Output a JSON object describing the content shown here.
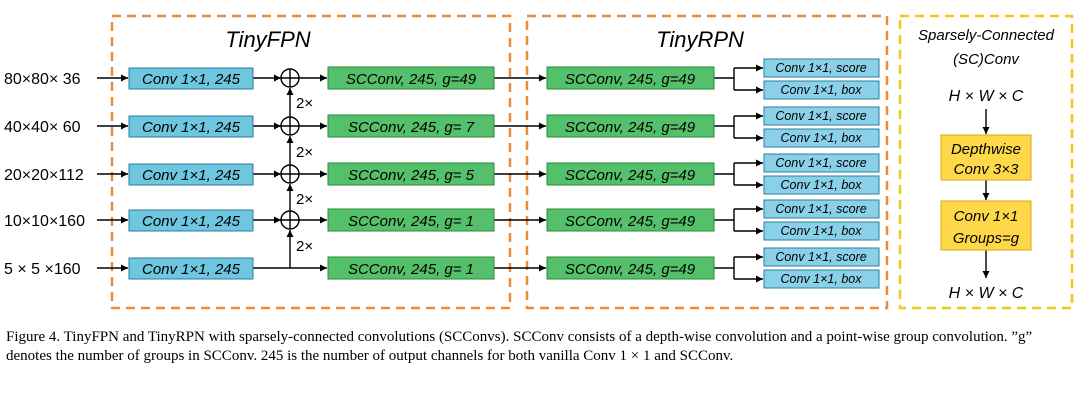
{
  "colors": {
    "conv_fill": "#6ec6df",
    "scconv_fill": "#55c06a",
    "head_fill": "#8ad0e8",
    "sc_fill": "#ffd84a",
    "frame_orange": "#f08a33",
    "frame_yellow": "#f5c518",
    "line": "#000000"
  },
  "sections": {
    "fpn_title": "TinyFPN",
    "rpn_title": "TinyRPN",
    "sc_title_line1": "Sparsely-Connected",
    "sc_title_line2": "(SC)Conv"
  },
  "inputs": [
    "80×80× 36",
    "40×40× 60",
    "20×20×112",
    "10×10×160",
    "5 × 5 ×160"
  ],
  "conv_label": "Conv 1×1, 245",
  "upsample_label": "2×",
  "fpn_scconv": [
    "SCConv, 245, g=49",
    "SCConv, 245, g= 7",
    "SCConv, 245, g= 5",
    "SCConv, 245, g= 1",
    "SCConv, 245, g= 1"
  ],
  "rpn_scconv": "SCConv, 245, g=49",
  "head_score": "Conv 1×1, score",
  "head_box": "Conv 1×1, box",
  "sc_block": {
    "input": "H × W × C",
    "depthwise_line1": "Depthwise",
    "depthwise_line2": "Conv 3×3",
    "group_line1": "Conv 1×1",
    "group_line2": "Groups=g",
    "output": "H × W × C"
  },
  "caption": "Figure 4. TinyFPN and TinyRPN with sparsely-connected convolutions (SCConvs). SCConv consists of a depth-wise convolution and a point-wise group convolution. ”g” denotes the number of groups in SCConv. 245 is the number of output channels for both vanilla Conv 1 × 1 and SCConv."
}
